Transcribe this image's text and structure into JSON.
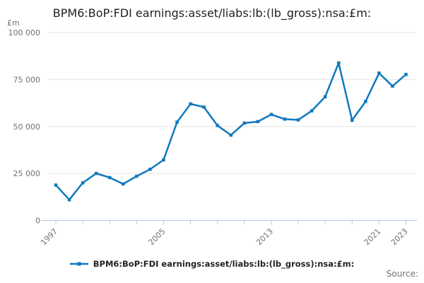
{
  "title": "BPM6:BoP:FDI earnings:asset/liabs:lb:(lb_gross):nsa:£m:",
  "y_axis": {
    "unit": "£m"
  },
  "legend": {
    "label": "BPM6:BoP:FDI earnings:asset/liabs:lb:(lb_gross):nsa:£m:"
  },
  "source_label": "Source:",
  "colors": {
    "line": "#1178be",
    "grid": "#e6e6e6",
    "axis": "#b4c8dc",
    "tick_text": "#707070",
    "title_text": "#222222"
  },
  "chart_data": {
    "type": "line",
    "title": "BPM6:BoP:FDI earnings:asset/liabs:lb:(lb_gross):nsa:£m:",
    "ylabel": "£m",
    "legend_position": "bottom",
    "grid": "horizontal",
    "ylim": [
      0,
      100000
    ],
    "yticks": [
      0,
      25000,
      50000,
      75000,
      100000
    ],
    "ytick_labels": [
      "0",
      "25 000",
      "50 000",
      "75 000",
      "100 000"
    ],
    "xtick_step": 2,
    "xtick_label_years": [
      1997,
      2005,
      2013,
      2021,
      2023
    ],
    "series": [
      {
        "name": "BPM6:BoP:FDI earnings:asset/liabs:lb:(lb_gross):nsa:£m:",
        "x": [
          1997,
          1998,
          1999,
          2000,
          2001,
          2002,
          2003,
          2004,
          2005,
          2006,
          2007,
          2008,
          2009,
          2010,
          2011,
          2012,
          2013,
          2014,
          2015,
          2016,
          2017,
          2018,
          2019,
          2020,
          2021,
          2022,
          2023
        ],
        "values": [
          18800,
          11000,
          20000,
          25000,
          22800,
          19400,
          23500,
          27200,
          32200,
          52300,
          62000,
          60300,
          50500,
          45400,
          51800,
          52600,
          56400,
          53900,
          53500,
          58300,
          65800,
          83800,
          53300,
          63300,
          78400,
          71500,
          77700
        ]
      }
    ]
  }
}
